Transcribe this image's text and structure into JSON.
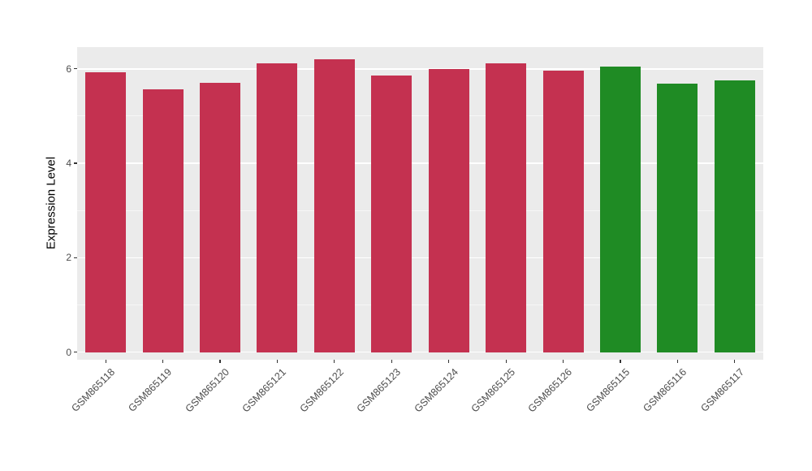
{
  "chart_data": {
    "type": "bar",
    "title": "",
    "xlabel": "",
    "ylabel": "Expression Level",
    "yticks": [
      0,
      2,
      4,
      6
    ],
    "ylim": [
      0,
      6.46
    ],
    "grid": true,
    "legend": "none",
    "panel_background": "#EBEBEB",
    "grid_color": "#FFFFFF",
    "axis_text_color": "#4D4D4D",
    "group_colors": {
      "group1": "#C43150",
      "group2": "#1F8B24"
    },
    "categories": [
      "GSM865118",
      "GSM865119",
      "GSM865120",
      "GSM865121",
      "GSM865122",
      "GSM865123",
      "GSM865124",
      "GSM865125",
      "GSM865126",
      "GSM865115",
      "GSM865116",
      "GSM865117"
    ],
    "values": [
      5.92,
      5.57,
      5.7,
      6.11,
      6.2,
      5.85,
      5.99,
      6.12,
      5.96,
      6.05,
      5.68,
      5.76
    ],
    "bar_colors": [
      "#C43150",
      "#C43150",
      "#C43150",
      "#C43150",
      "#C43150",
      "#C43150",
      "#C43150",
      "#C43150",
      "#C43150",
      "#1F8B24",
      "#1F8B24",
      "#1F8B24"
    ]
  }
}
